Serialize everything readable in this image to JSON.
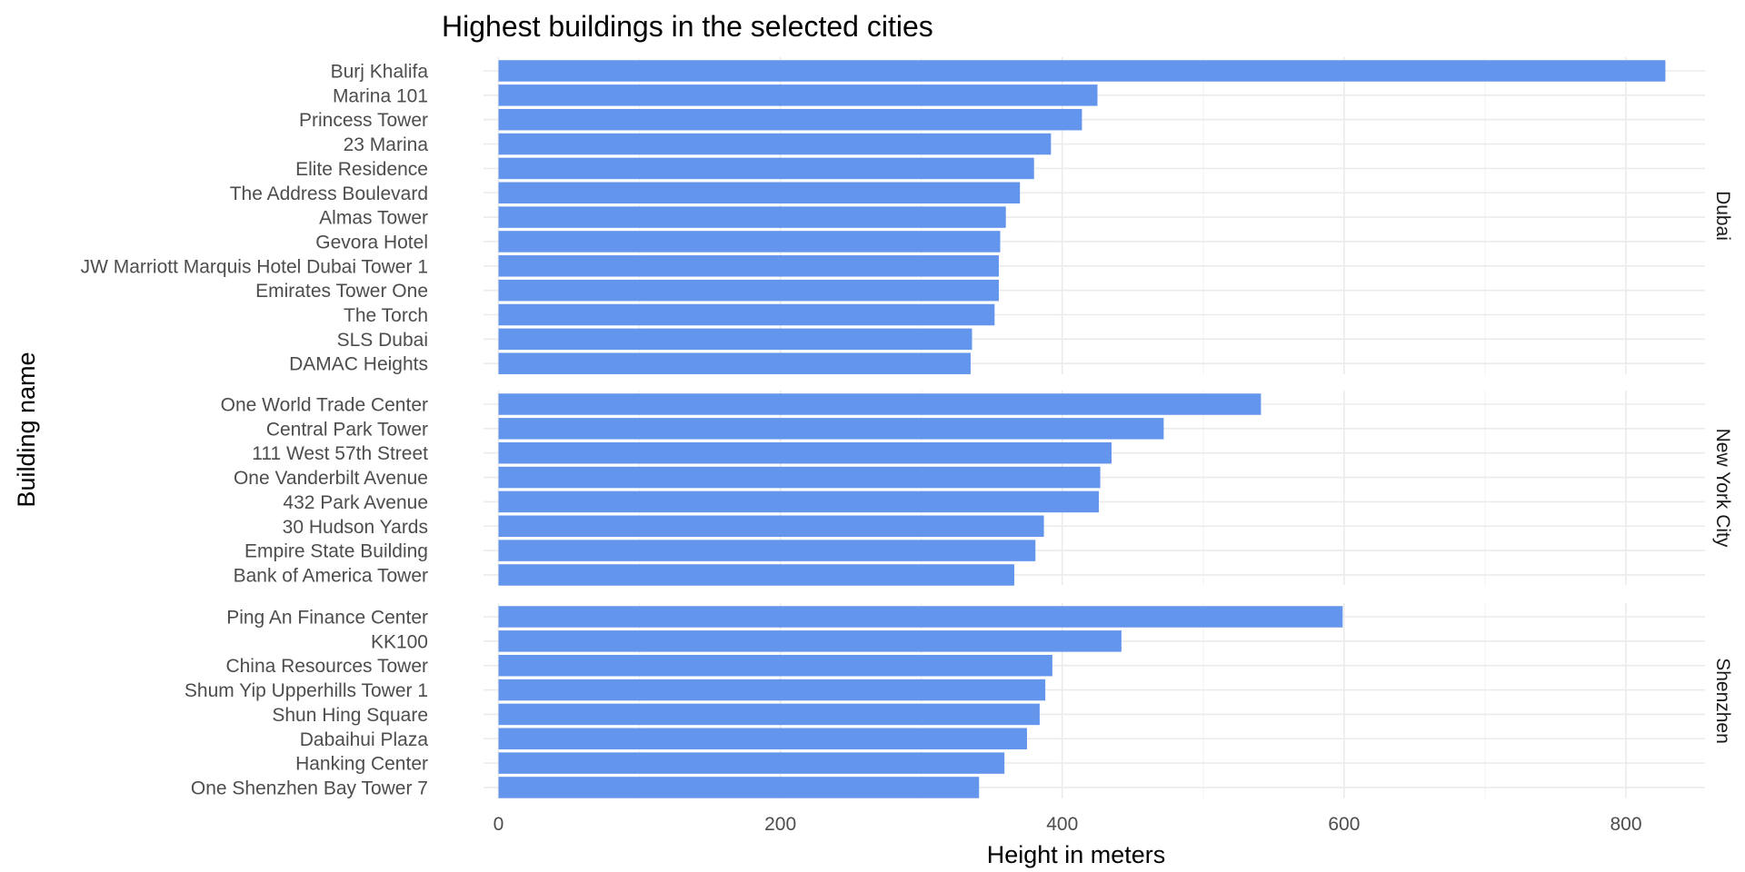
{
  "chart_data": {
    "type": "bar",
    "orientation": "horizontal",
    "title": "Highest buildings in the selected cities",
    "xlabel": "Height in meters",
    "ylabel": "Building name",
    "xlim": [
      0,
      870
    ],
    "xticks": [
      0,
      200,
      400,
      600,
      800
    ],
    "bar_color": "#6495ed",
    "grid": true,
    "facets": [
      {
        "name": "Dubai",
        "categories": [
          "Burj Khalifa",
          "Marina 101",
          "Princess Tower",
          "23 Marina",
          "Elite Residence",
          "The Address Boulevard",
          "Almas Tower",
          "Gevora Hotel",
          "JW Marriott Marquis Hotel Dubai Tower 1",
          "Emirates Tower One",
          "The Torch",
          "SLS Dubai",
          "DAMAC Heights"
        ],
        "values": [
          828,
          425,
          414,
          392,
          380,
          370,
          360,
          356,
          355,
          355,
          352,
          336,
          335
        ]
      },
      {
        "name": "New York City",
        "categories": [
          "One World Trade Center",
          "Central Park Tower",
          "111 West 57th Street",
          "One Vanderbilt Avenue",
          "432 Park Avenue",
          "30 Hudson Yards",
          "Empire State Building",
          "Bank of America Tower"
        ],
        "values": [
          541,
          472,
          435,
          427,
          426,
          387,
          381,
          366
        ]
      },
      {
        "name": "Shenzhen",
        "categories": [
          "Ping An Finance Center",
          "KK100",
          "China Resources Tower",
          "Shum Yip Upperhills Tower 1",
          "Shun Hing Square",
          "Dabaihui Plaza",
          "Hanking Center",
          "One Shenzhen Bay Tower 7"
        ],
        "values": [
          599,
          442,
          393,
          388,
          384,
          375,
          359,
          341
        ]
      }
    ]
  }
}
